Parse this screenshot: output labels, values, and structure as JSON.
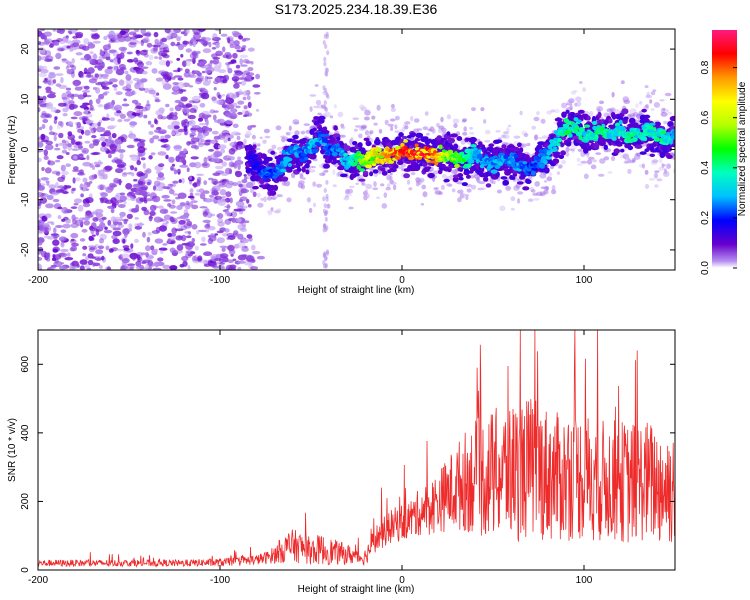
{
  "title": "S173.2025.234.18.39.E36",
  "colors": {
    "snr_line": "#ee2b2b",
    "frame": "#000000"
  },
  "chart_data": [
    {
      "type": "heatmap",
      "xlabel": "Height of straight line (km)",
      "ylabel": "Frequency (Hz)",
      "xlim": [
        -200,
        150
      ],
      "ylim": [
        -24,
        24
      ],
      "xticks": [
        -200,
        -100,
        0,
        100
      ],
      "yticks": [
        -20,
        -10,
        0,
        10,
        20
      ],
      "colorbar": {
        "label": "Normalized spectral amplitude",
        "range": [
          0,
          0.95
        ],
        "ticks": [
          "0.0",
          "0.2",
          "0.4",
          "0.6",
          "0.8"
        ],
        "tick_values": [
          0,
          0.2,
          0.4,
          0.6,
          0.8
        ]
      },
      "noise_region": {
        "x_range": [
          -200,
          -77
        ],
        "y_range": [
          -24,
          24
        ],
        "amplitude": "0.0-0.1"
      },
      "vertical_streak": {
        "x": -42,
        "y_range": [
          -24,
          24
        ],
        "amplitude": "0.0-0.05"
      },
      "ridge": {
        "x": [
          -85,
          -80,
          -75,
          -70,
          -65,
          -60,
          -55,
          -50,
          -45,
          -40,
          -35,
          -30,
          -25,
          -20,
          -15,
          -10,
          -5,
          0,
          5,
          10,
          15,
          20,
          25,
          30,
          35,
          40,
          45,
          50,
          55,
          60,
          65,
          70,
          75,
          80,
          85,
          90,
          95,
          100,
          105,
          110,
          115,
          120,
          125,
          130,
          135,
          140,
          145,
          150
        ],
        "y": [
          -2,
          -3,
          -5,
          -5,
          -3,
          0,
          -1,
          0,
          3,
          0,
          0,
          -3,
          -2,
          -2,
          -1,
          -1,
          -1,
          0,
          -1,
          -1,
          -1,
          -1,
          -1,
          -2,
          -2,
          -1,
          -2,
          -3,
          -2,
          -2,
          -3,
          -4,
          -2,
          -1,
          2,
          4,
          5,
          3,
          3,
          4,
          3,
          4,
          3,
          3,
          4,
          3,
          2,
          3
        ],
        "amp": [
          0.15,
          0.2,
          0.25,
          0.25,
          0.3,
          0.3,
          0.25,
          0.35,
          0.3,
          0.25,
          0.3,
          0.35,
          0.45,
          0.6,
          0.7,
          0.75,
          0.8,
          0.85,
          0.85,
          0.9,
          0.85,
          0.75,
          0.6,
          0.55,
          0.45,
          0.35,
          0.3,
          0.3,
          0.3,
          0.3,
          0.3,
          0.25,
          0.25,
          0.3,
          0.35,
          0.45,
          0.45,
          0.4,
          0.4,
          0.45,
          0.4,
          0.4,
          0.45,
          0.4,
          0.4,
          0.45,
          0.4,
          0.35
        ]
      }
    },
    {
      "type": "line",
      "xlabel": "Height of straight line (km)",
      "ylabel": "SNR (10 * v/v)",
      "xlim": [
        -200,
        150
      ],
      "ylim": [
        0,
        700
      ],
      "xticks": [
        -200,
        -100,
        0,
        100
      ],
      "yticks": [
        0,
        200,
        400,
        600
      ],
      "series": [
        {
          "name": "SNR",
          "x": [
            -200,
            -180,
            -160,
            -140,
            -120,
            -100,
            -90,
            -80,
            -75,
            -70,
            -65,
            -60,
            -55,
            -50,
            -45,
            -40,
            -35,
            -30,
            -25,
            -22,
            -20,
            -15,
            -10,
            -5,
            0,
            5,
            10,
            15,
            20,
            25,
            30,
            35,
            40,
            45,
            50,
            55,
            60,
            65,
            70,
            75,
            80,
            85,
            90,
            95,
            100,
            105,
            110,
            115,
            120,
            125,
            130,
            135,
            140,
            145,
            150
          ],
          "center": [
            20,
            20,
            20,
            20,
            20,
            22,
            25,
            30,
            35,
            45,
            60,
            70,
            65,
            55,
            60,
            55,
            50,
            45,
            40,
            35,
            40,
            90,
            110,
            130,
            140,
            150,
            170,
            180,
            200,
            220,
            240,
            260,
            270,
            270,
            280,
            280,
            290,
            290,
            300,
            290,
            280,
            270,
            270,
            280,
            270,
            270,
            260,
            260,
            260,
            250,
            260,
            260,
            250,
            240,
            250
          ],
          "spread": [
            10,
            10,
            10,
            10,
            10,
            12,
            12,
            15,
            18,
            25,
            40,
            50,
            45,
            40,
            45,
            40,
            35,
            30,
            25,
            20,
            25,
            40,
            45,
            50,
            55,
            60,
            70,
            80,
            90,
            110,
            130,
            150,
            170,
            180,
            190,
            200,
            200,
            210,
            210,
            200,
            200,
            190,
            190,
            190,
            190,
            190,
            180,
            180,
            180,
            180,
            180,
            180,
            180,
            180,
            180
          ]
        }
      ]
    }
  ]
}
